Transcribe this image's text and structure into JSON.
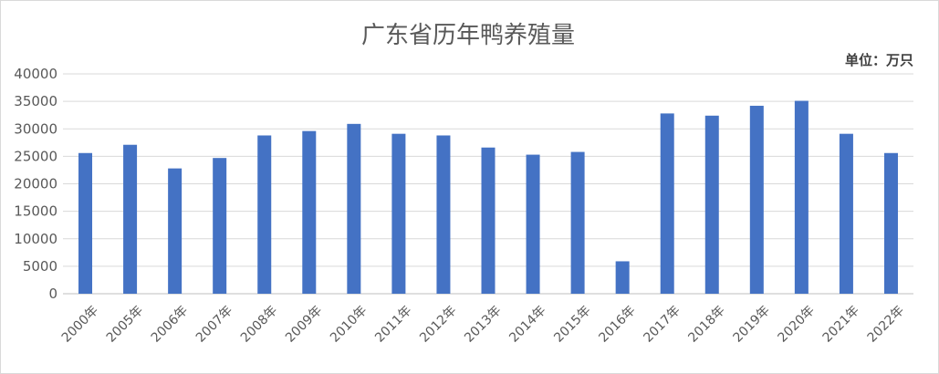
{
  "chart_data": {
    "type": "bar",
    "title": "广东省历年鸭养殖量",
    "unit_note": "单位：万只",
    "categories": [
      "2000年",
      "2005年",
      "2006年",
      "2007年",
      "2008年",
      "2009年",
      "2010年",
      "2011年",
      "2012年",
      "2013年",
      "2014年",
      "2015年",
      "2016年",
      "2017年",
      "2018年",
      "2019年",
      "2020年",
      "2021年",
      "2022年"
    ],
    "values": [
      25600,
      27100,
      22800,
      24700,
      28800,
      29600,
      30900,
      29100,
      28800,
      26600,
      25300,
      25800,
      5900,
      32800,
      32400,
      34200,
      35100,
      29100,
      25600
    ],
    "ylim": [
      0,
      40000
    ],
    "yticks": [
      0,
      5000,
      10000,
      15000,
      20000,
      25000,
      30000,
      35000,
      40000
    ],
    "grid": true,
    "legend": "none",
    "bar_color": "#4472c4"
  }
}
